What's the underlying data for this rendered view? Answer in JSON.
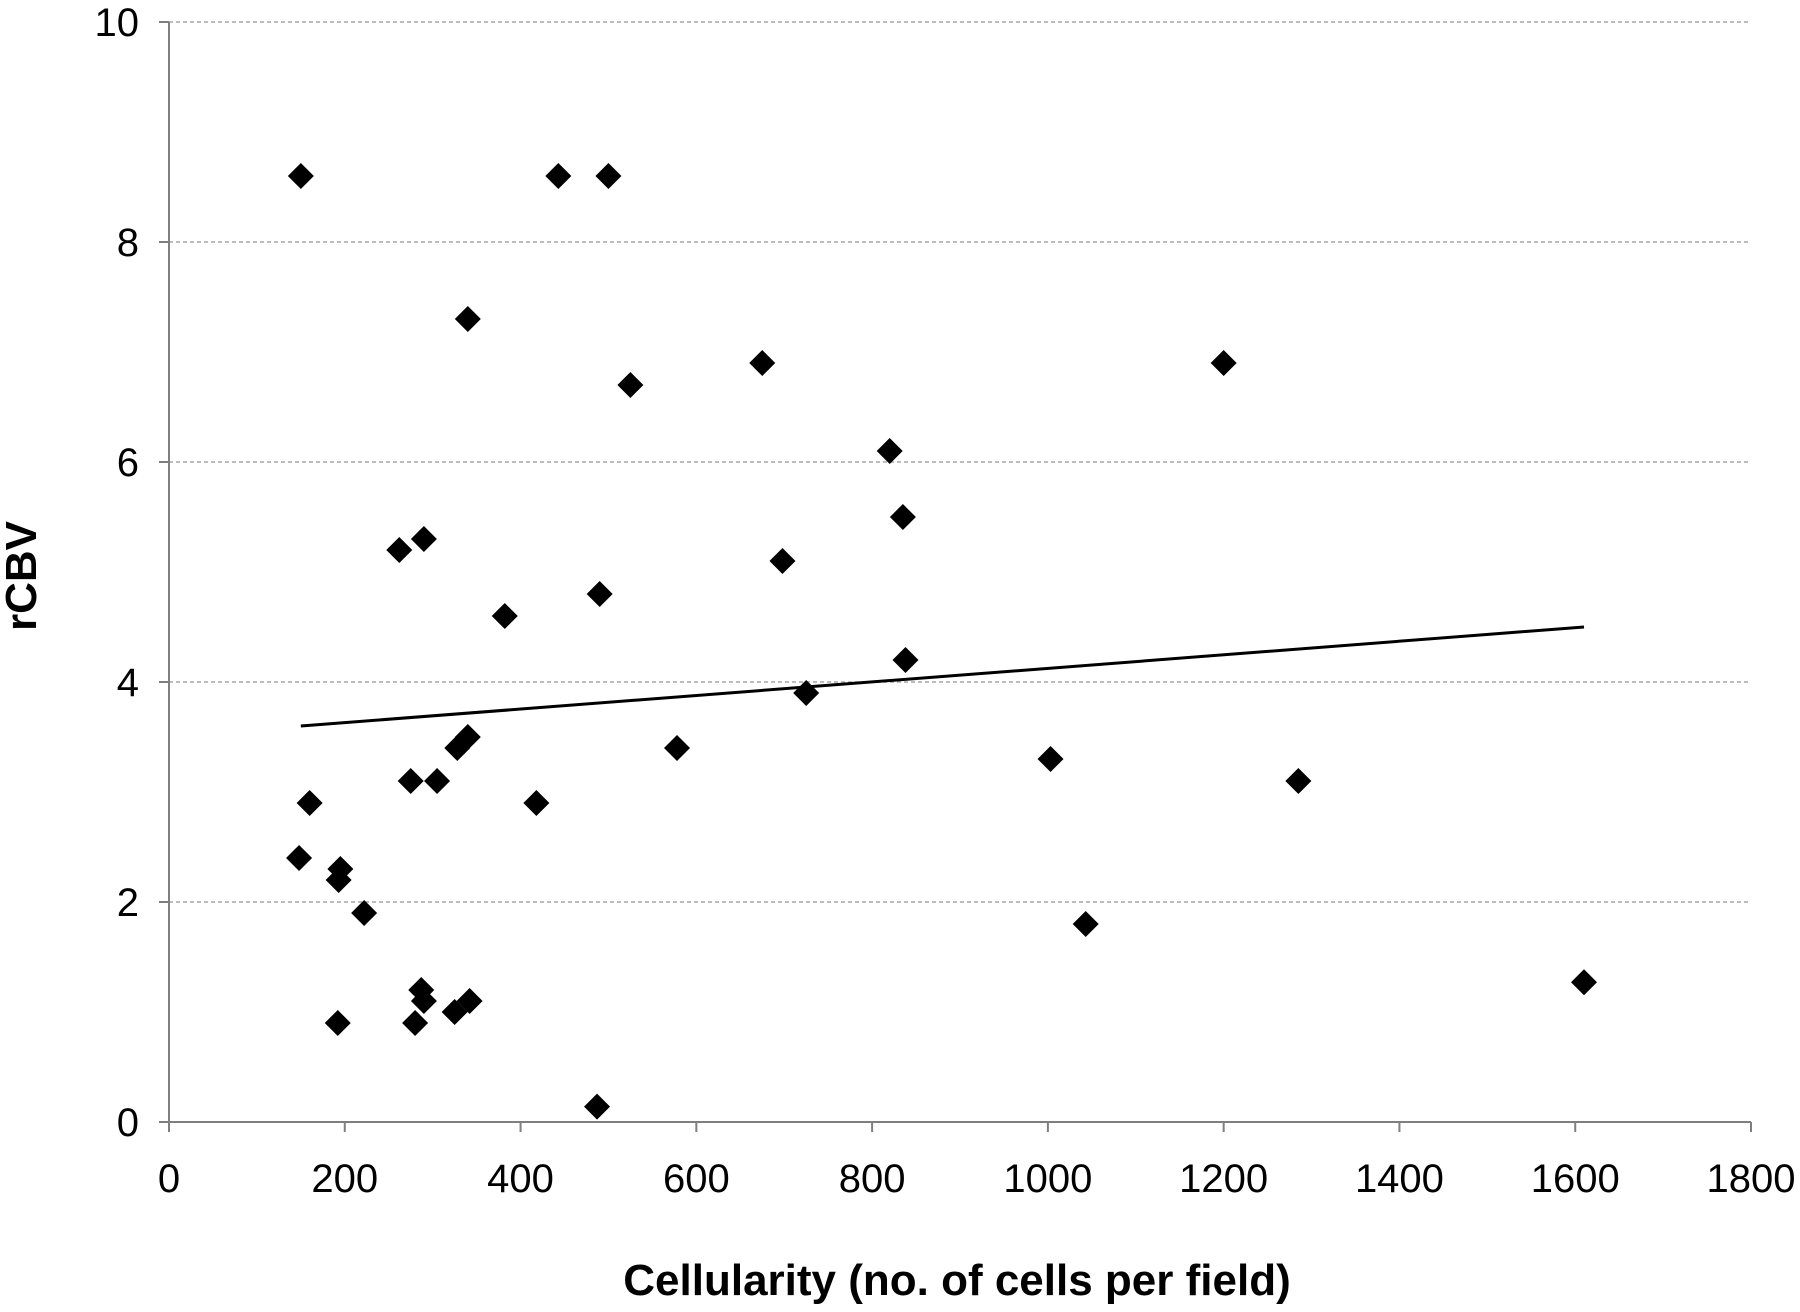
{
  "chart_data": {
    "type": "scatter",
    "title": "",
    "xlabel": "Cellularity (no. of cells per field)",
    "ylabel": "rCBV",
    "xlim": [
      0,
      1800
    ],
    "ylim": [
      0,
      10
    ],
    "x_ticks": [
      0,
      200,
      400,
      600,
      800,
      1000,
      1200,
      1400,
      1600,
      1800
    ],
    "y_ticks": [
      0,
      2,
      4,
      6,
      8,
      10
    ],
    "grid": {
      "y": true,
      "x": false,
      "style": "dashed"
    },
    "legend": "none",
    "marker": "diamond",
    "colors": {
      "marker": "#000000",
      "trendline": "#000000",
      "grid": "#a6a6a6",
      "axis": "#7f7f7f"
    },
    "series": [
      {
        "points": [
          [
            150,
            8.6
          ],
          [
            443,
            8.6
          ],
          [
            500,
            8.6
          ],
          [
            340,
            7.3
          ],
          [
            675,
            6.9
          ],
          [
            1200,
            6.9
          ],
          [
            525,
            6.7
          ],
          [
            820,
            6.1
          ],
          [
            835,
            5.5
          ],
          [
            290,
            5.3
          ],
          [
            262,
            5.2
          ],
          [
            698,
            5.1
          ],
          [
            490,
            4.8
          ],
          [
            382,
            4.6
          ],
          [
            838,
            4.2
          ],
          [
            725,
            3.9
          ],
          [
            340,
            3.5
          ],
          [
            328,
            3.4
          ],
          [
            578,
            3.4
          ],
          [
            1003,
            3.3
          ],
          [
            275,
            3.1
          ],
          [
            305,
            3.1
          ],
          [
            1285,
            3.1
          ],
          [
            160,
            2.9
          ],
          [
            418,
            2.9
          ],
          [
            148,
            2.4
          ],
          [
            195,
            2.3
          ],
          [
            193,
            2.2
          ],
          [
            222,
            1.9
          ],
          [
            1043,
            1.8
          ],
          [
            1610,
            1.27
          ],
          [
            287,
            1.2
          ],
          [
            290,
            1.1
          ],
          [
            342,
            1.1
          ],
          [
            325,
            1.0
          ],
          [
            192,
            0.9
          ],
          [
            280,
            0.9
          ],
          [
            487,
            0.14
          ]
        ]
      }
    ],
    "trendline": {
      "x": [
        150,
        1610
      ],
      "y": [
        3.6,
        4.5
      ]
    }
  }
}
